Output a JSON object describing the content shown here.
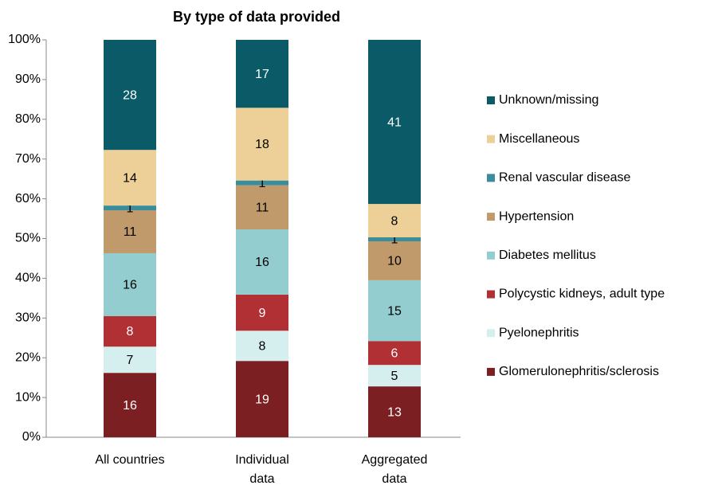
{
  "chart_data": {
    "type": "stacked_bar_100",
    "title": "By type of data provided",
    "categories": [
      "All countries",
      "Individual\ndata",
      "Aggregated\ndata"
    ],
    "ylim": [
      0,
      100
    ],
    "yticks": [
      {
        "value": 0,
        "label": "0%"
      },
      {
        "value": 10,
        "label": "10%"
      },
      {
        "value": 20,
        "label": "20%"
      },
      {
        "value": 30,
        "label": "30%"
      },
      {
        "value": 40,
        "label": "40%"
      },
      {
        "value": 50,
        "label": "50%"
      },
      {
        "value": 60,
        "label": "60%"
      },
      {
        "value": 70,
        "label": "70%"
      },
      {
        "value": 80,
        "label": "80%"
      },
      {
        "value": 90,
        "label": "90%"
      },
      {
        "value": 100,
        "label": "100%"
      }
    ],
    "series": [
      {
        "name": "Glomerulonephritis/sclerosis",
        "color": "#7b1f22",
        "values": [
          16.2,
          19.2,
          12.8
        ],
        "value_labels": [
          "16",
          "19",
          "13"
        ]
      },
      {
        "name": "Pyelonephritis",
        "color": "#d5eeee",
        "values": [
          6.6,
          7.6,
          5.4
        ],
        "value_labels": [
          "7",
          "8",
          "5"
        ]
      },
      {
        "name": "Polycystic kidneys, adult type",
        "color": "#b03033",
        "values": [
          7.7,
          9.1,
          6.0
        ],
        "value_labels": [
          "8",
          "9",
          "6"
        ]
      },
      {
        "name": "Diabetes mellitus",
        "color": "#93cdd0",
        "values": [
          15.8,
          16.4,
          15.3
        ],
        "value_labels": [
          "16",
          "16",
          "15"
        ]
      },
      {
        "name": "Hypertension",
        "color": "#c09a6b",
        "values": [
          10.8,
          11.1,
          9.8
        ],
        "value_labels": [
          "11",
          "11",
          "10"
        ]
      },
      {
        "name": "Renal vascular disease",
        "color": "#3b8d9c",
        "values": [
          1.2,
          1.2,
          1.0
        ],
        "value_labels": [
          "1",
          "1",
          "1"
        ]
      },
      {
        "name": "Miscellaneous",
        "color": "#ecd098",
        "values": [
          14.0,
          18.3,
          8.4
        ],
        "value_labels": [
          "14",
          "18",
          "8"
        ]
      },
      {
        "name": "Unknown/missing",
        "color": "#0b5a67",
        "values": [
          27.7,
          17.1,
          41.3
        ],
        "value_labels": [
          "28",
          "17",
          "41"
        ]
      }
    ]
  }
}
